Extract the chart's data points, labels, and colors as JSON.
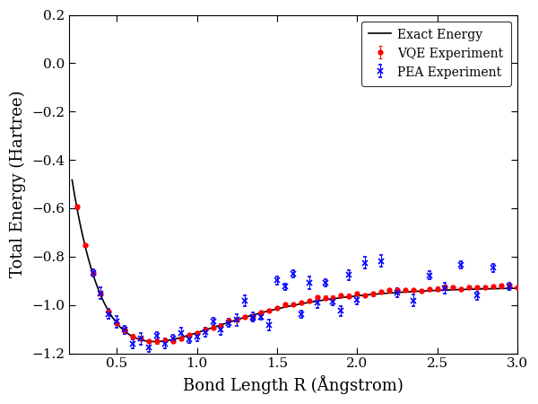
{
  "title": "",
  "xlabel": "Bond Length R (Ångstrom)",
  "ylabel": "Total Energy (Hartree)",
  "xlim": [
    0.2,
    3.0
  ],
  "ylim": [
    -1.2,
    0.2
  ],
  "xticks": [
    0.5,
    1.0,
    1.5,
    2.0,
    2.5,
    3.0
  ],
  "yticks": [
    -1.2,
    -1.0,
    -0.8,
    -0.6,
    -0.4,
    -0.2,
    0.0,
    0.2
  ],
  "exact_color": "#000000",
  "vqe_color": "#FF0000",
  "pea_color": "#0000FF",
  "legend_labels": [
    "Exact Energy",
    "VQE Experiment",
    "PEA Experiment"
  ],
  "figsize": [
    6.0,
    4.5
  ],
  "dpi": 100,
  "exact_linewidth": 1.2,
  "vqe_markersize": 3.5,
  "pea_markersize": 5,
  "font_family": "serif"
}
